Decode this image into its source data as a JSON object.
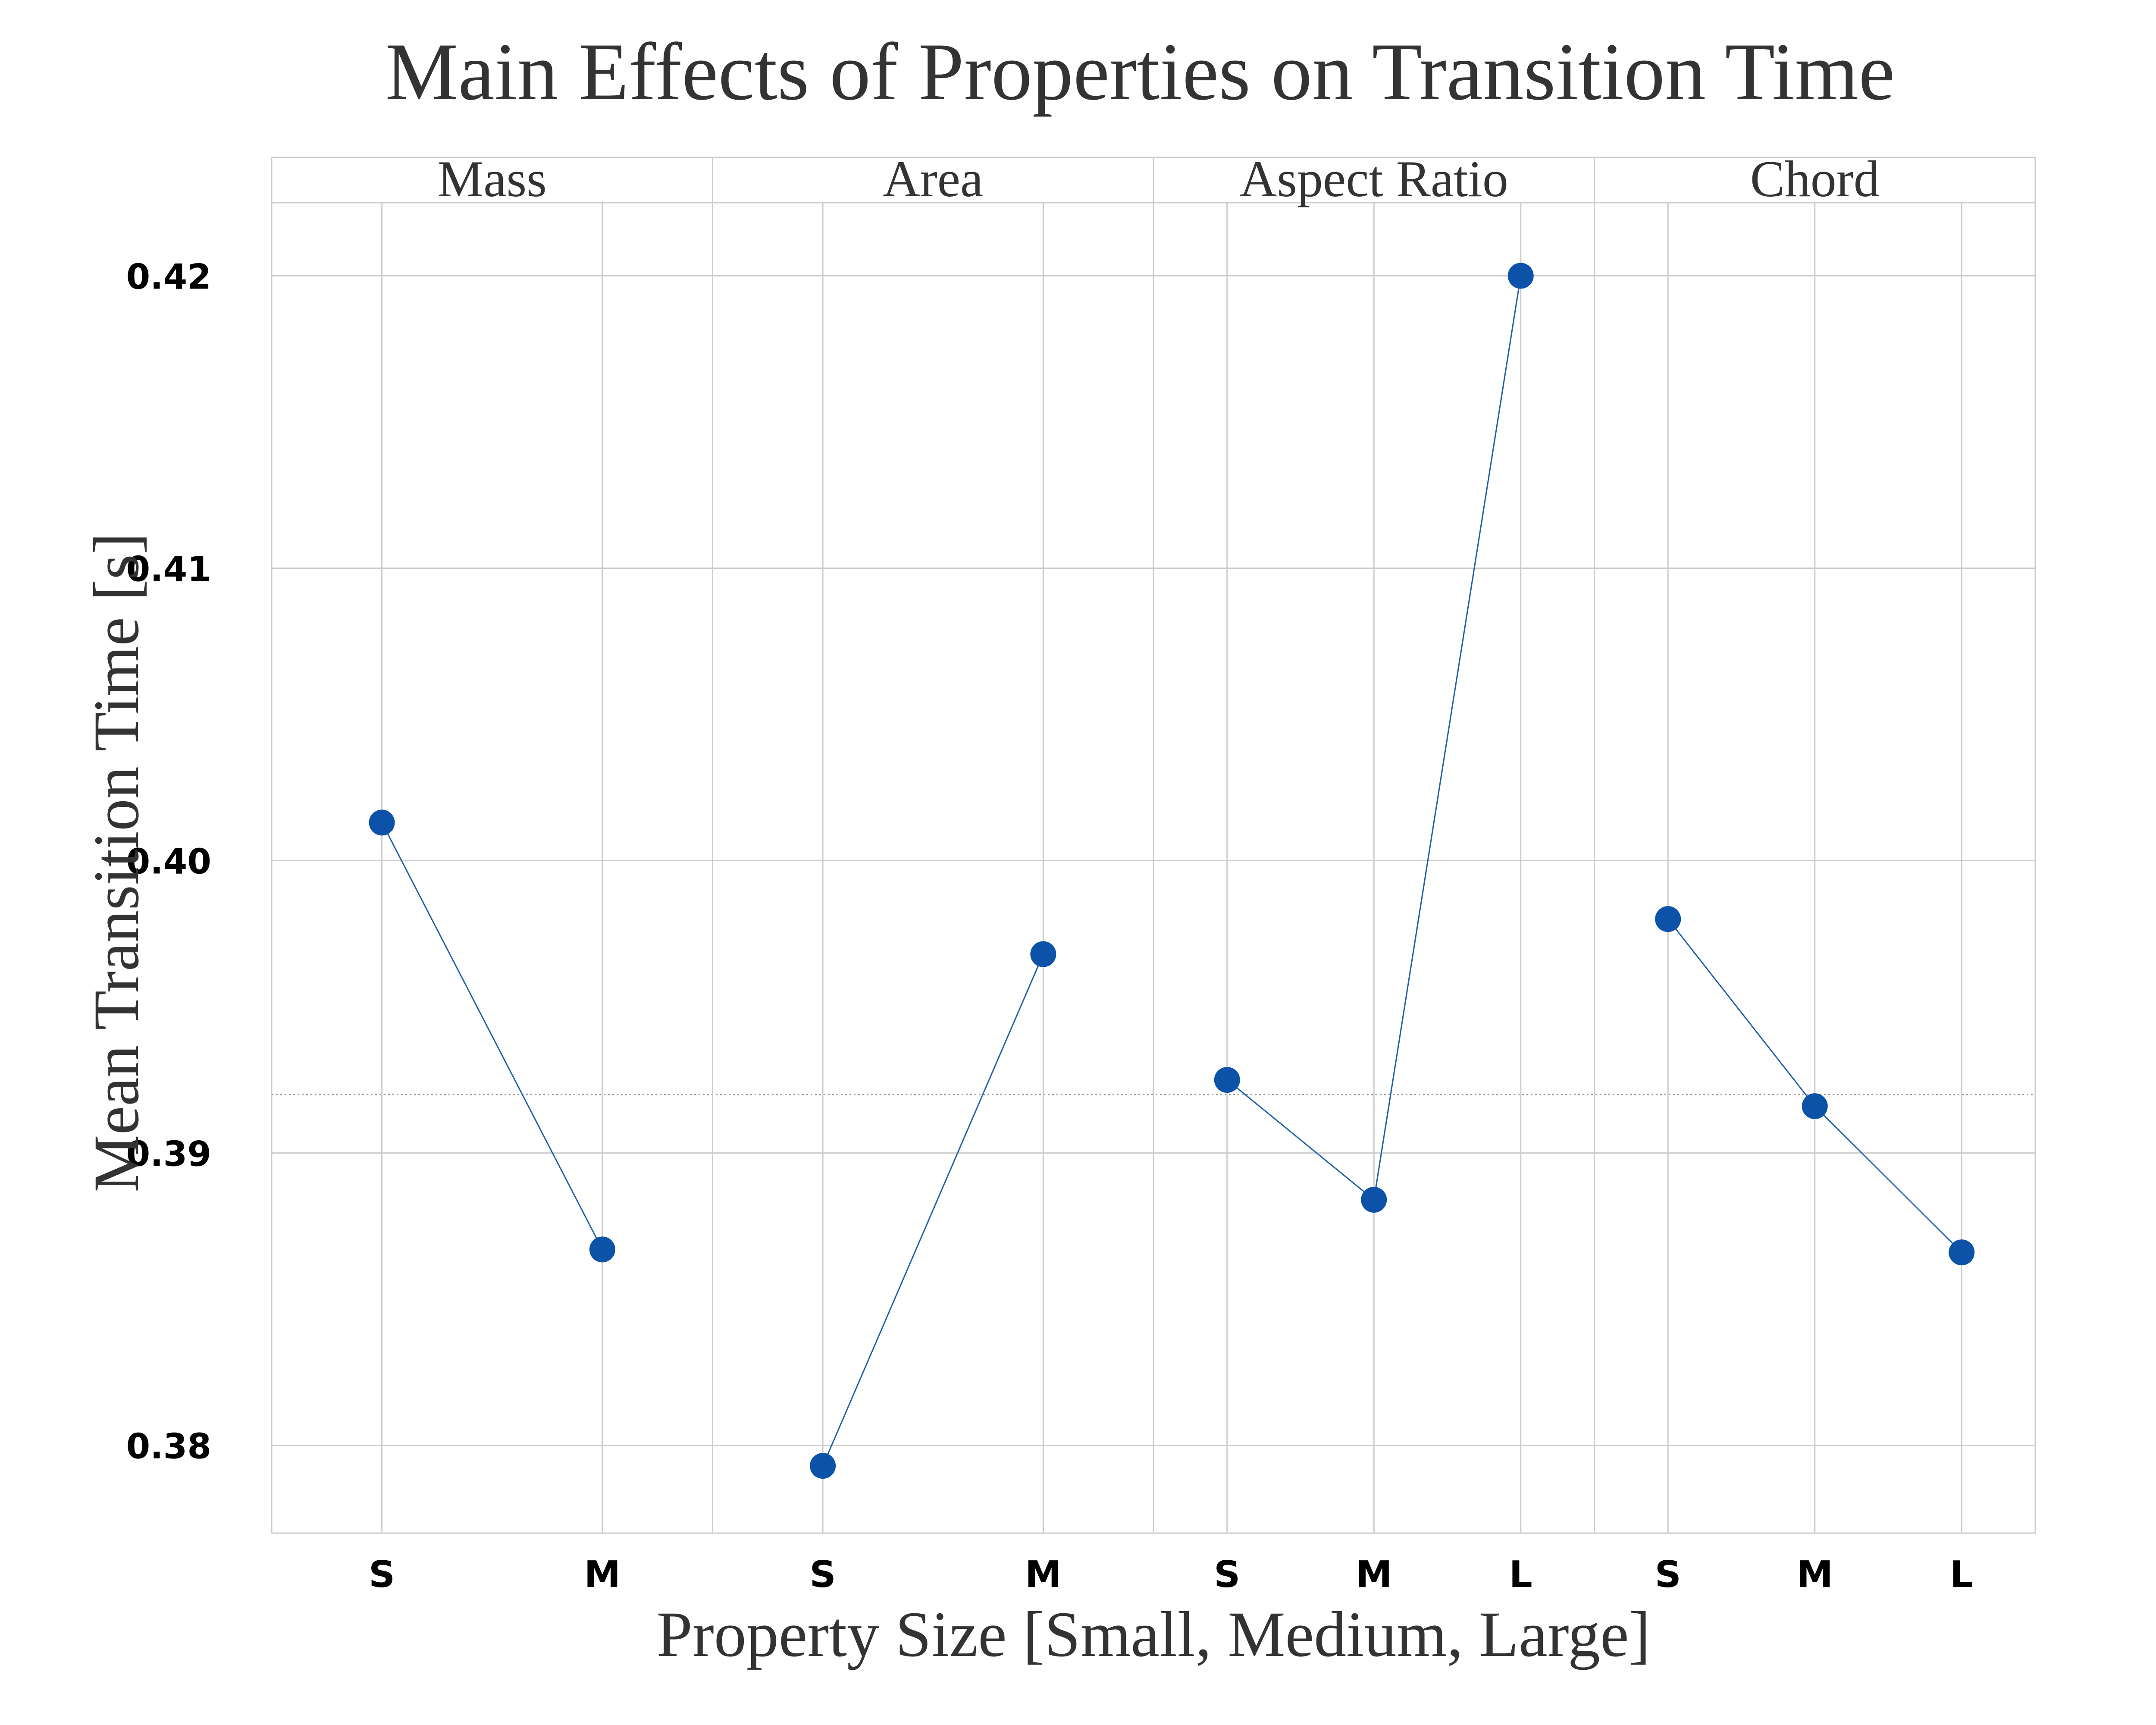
{
  "chart_data": {
    "type": "line",
    "title": "Main Effects of Properties on Transition Time",
    "xlabel": "Property Size [Small, Medium, Large]",
    "ylabel": "Mean Transition Time [s]",
    "ylim": [
      0.377,
      0.4225
    ],
    "yticks": [
      "0.38",
      "0.39",
      "0.40",
      "0.41",
      "0.42"
    ],
    "ytick_values": [
      0.38,
      0.39,
      0.4,
      0.41,
      0.42
    ],
    "reference_line": 0.392,
    "grid": true,
    "colors": {
      "line": "#1f5fa8",
      "marker": "#0b52a8",
      "grid": "#cccccc",
      "reference": "#999999"
    },
    "panels": [
      {
        "name": "Mass",
        "categories": [
          "S",
          "M"
        ],
        "values": [
          0.4013,
          0.3867
        ]
      },
      {
        "name": "Area",
        "categories": [
          "S",
          "M"
        ],
        "values": [
          0.3793,
          0.3968
        ]
      },
      {
        "name": "Aspect Ratio",
        "categories": [
          "S",
          "M",
          "L"
        ],
        "values": [
          0.3925,
          0.3884,
          0.42
        ]
      },
      {
        "name": "Chord",
        "categories": [
          "S",
          "M",
          "L"
        ],
        "values": [
          0.398,
          0.3916,
          0.3866
        ]
      }
    ]
  }
}
